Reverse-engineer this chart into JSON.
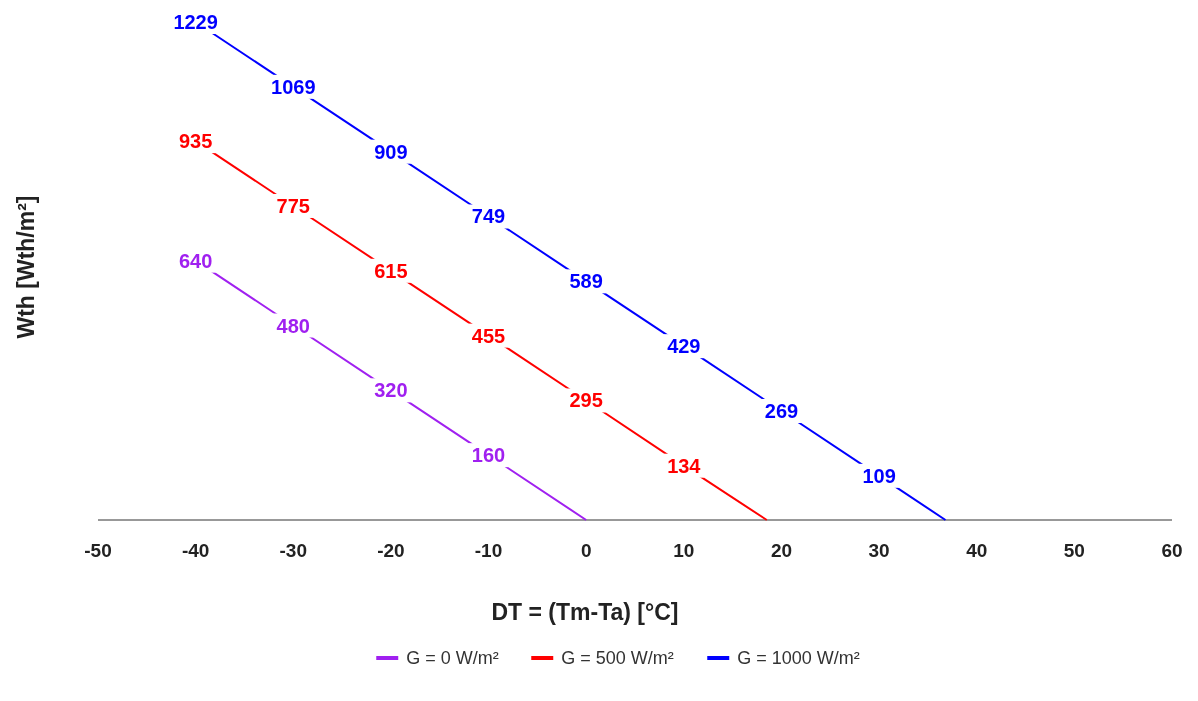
{
  "chart_data": {
    "type": "line",
    "xlabel": "DT = (Tm-Ta) [°C]",
    "ylabel": "Wth [Wth/m²]",
    "xlim": [
      -50,
      60
    ],
    "xticks": [
      -50,
      -40,
      -30,
      -20,
      -10,
      0,
      10,
      20,
      30,
      40,
      50,
      60
    ],
    "tick_labels": "x",
    "grid": false,
    "legend": "bottom",
    "marker": "none",
    "line_style": "solid",
    "series": [
      {
        "name": "G = 0 W/m²",
        "color": "#a020f0",
        "x": [
          -40,
          -30,
          -20,
          -10,
          0
        ],
        "values": [
          640,
          480,
          320,
          160,
          0
        ],
        "value_labels": [
          "640",
          "480",
          "320",
          "160",
          null
        ]
      },
      {
        "name": "G = 500 W/m²",
        "color": "#ff0000",
        "x": [
          -40,
          -30,
          -20,
          -10,
          0,
          10,
          18.5
        ],
        "values": [
          935,
          775,
          615,
          455,
          295,
          134,
          0
        ],
        "value_labels": [
          "935",
          "775",
          "615",
          "455",
          "295",
          "134",
          null
        ]
      },
      {
        "name": "G = 1000 W/m²",
        "color": "#0000ff",
        "x": [
          -40,
          -30,
          -20,
          -10,
          0,
          10,
          20,
          30,
          36.8
        ],
        "values": [
          1229,
          1069,
          909,
          749,
          589,
          429,
          269,
          109,
          0
        ],
        "value_labels": [
          "1229",
          "1069",
          "909",
          "749",
          "589",
          "429",
          "269",
          "109",
          null
        ]
      }
    ]
  }
}
